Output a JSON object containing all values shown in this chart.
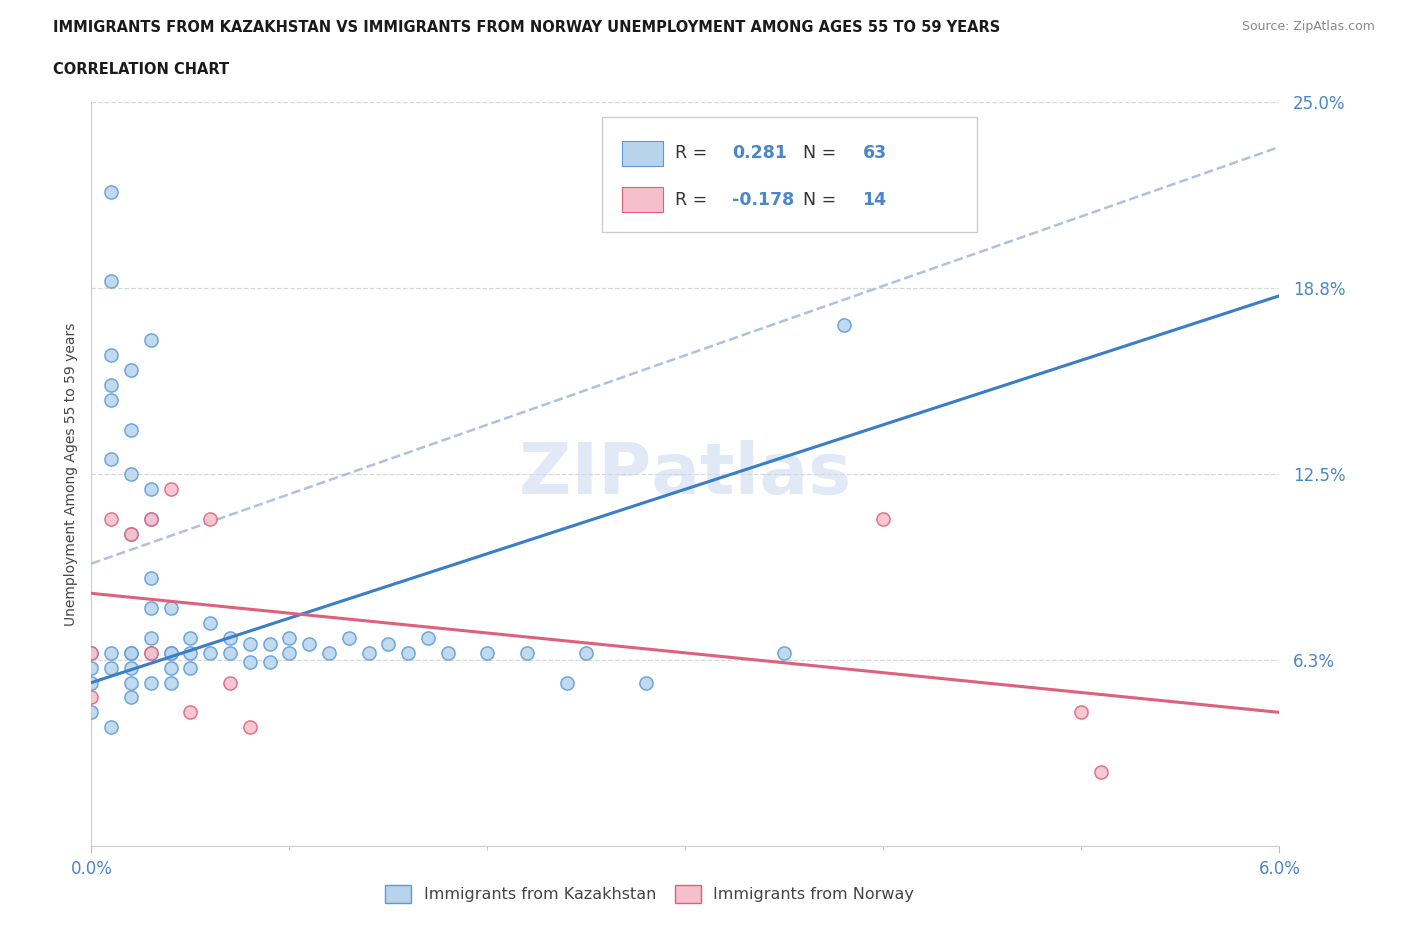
{
  "title_line1": "IMMIGRANTS FROM KAZAKHSTAN VS IMMIGRANTS FROM NORWAY UNEMPLOYMENT AMONG AGES 55 TO 59 YEARS",
  "title_line2": "CORRELATION CHART",
  "source": "Source: ZipAtlas.com",
  "ylabel": "Unemployment Among Ages 55 to 59 years",
  "xlim": [
    0.0,
    0.06
  ],
  "ylim": [
    0.0,
    0.25
  ],
  "ytick_vals": [
    0.0,
    0.0625,
    0.125,
    0.1875,
    0.25
  ],
  "ytick_labels": [
    "",
    "6.3%",
    "12.5%",
    "18.8%",
    "25.0%"
  ],
  "xtick_vals": [
    0.0,
    0.06
  ],
  "xtick_labels": [
    "0.0%",
    "6.0%"
  ],
  "xtick_minor": [
    0.01,
    0.02,
    0.03,
    0.04,
    0.05
  ],
  "legend_label1": "Immigrants from Kazakhstan",
  "legend_label2": "Immigrants from Norway",
  "R1": 0.281,
  "N1": 63,
  "R2": -0.178,
  "N2": 14,
  "color_kaz_fill": "#b8d4ed",
  "color_kaz_edge": "#5b9bd5",
  "color_nor_fill": "#f5bfcc",
  "color_nor_edge": "#e0607a",
  "color_kaz_line": "#3a7dc9",
  "color_nor_line": "#e0607a",
  "color_dashed": "#a0b8d8",
  "grid_color": "#d8d8d8",
  "background": "#ffffff",
  "tick_color": "#4a86c8",
  "kaz_trend_x0": 0.0,
  "kaz_trend_y0": 0.055,
  "kaz_trend_x1": 0.06,
  "kaz_trend_y1": 0.185,
  "nor_trend_x0": 0.0,
  "nor_trend_y0": 0.085,
  "nor_trend_x1": 0.06,
  "nor_trend_y1": 0.045,
  "dash_trend_x0": 0.0,
  "dash_trend_y0": 0.095,
  "dash_trend_x1": 0.06,
  "dash_trend_y1": 0.235,
  "kazakhstan_x": [
    0.0,
    0.0,
    0.0,
    0.0,
    0.001,
    0.001,
    0.001,
    0.001,
    0.001,
    0.001,
    0.002,
    0.002,
    0.002,
    0.002,
    0.002,
    0.003,
    0.003,
    0.003,
    0.003,
    0.003,
    0.004,
    0.004,
    0.004,
    0.004,
    0.005,
    0.005,
    0.005,
    0.006,
    0.006,
    0.007,
    0.007,
    0.008,
    0.008,
    0.009,
    0.009,
    0.01,
    0.01,
    0.011,
    0.012,
    0.013,
    0.014,
    0.015,
    0.016,
    0.017,
    0.018,
    0.02,
    0.022,
    0.024,
    0.025,
    0.028,
    0.001,
    0.002,
    0.003,
    0.002,
    0.003,
    0.001,
    0.002,
    0.001,
    0.003,
    0.002,
    0.004,
    0.035,
    0.038
  ],
  "kazakhstan_y": [
    0.065,
    0.06,
    0.055,
    0.045,
    0.22,
    0.19,
    0.165,
    0.065,
    0.06,
    0.04,
    0.065,
    0.065,
    0.06,
    0.055,
    0.05,
    0.09,
    0.08,
    0.07,
    0.065,
    0.055,
    0.08,
    0.065,
    0.06,
    0.055,
    0.07,
    0.065,
    0.06,
    0.075,
    0.065,
    0.07,
    0.065,
    0.068,
    0.062,
    0.068,
    0.062,
    0.07,
    0.065,
    0.068,
    0.065,
    0.07,
    0.065,
    0.068,
    0.065,
    0.07,
    0.065,
    0.065,
    0.065,
    0.055,
    0.065,
    0.055,
    0.13,
    0.125,
    0.12,
    0.105,
    0.17,
    0.155,
    0.14,
    0.15,
    0.11,
    0.16,
    0.065,
    0.065,
    0.175
  ],
  "norway_x": [
    0.0,
    0.0,
    0.001,
    0.002,
    0.003,
    0.003,
    0.004,
    0.005,
    0.006,
    0.007,
    0.008,
    0.04,
    0.05,
    0.051
  ],
  "norway_y": [
    0.065,
    0.05,
    0.11,
    0.105,
    0.065,
    0.11,
    0.12,
    0.045,
    0.11,
    0.055,
    0.04,
    0.11,
    0.045,
    0.025
  ]
}
